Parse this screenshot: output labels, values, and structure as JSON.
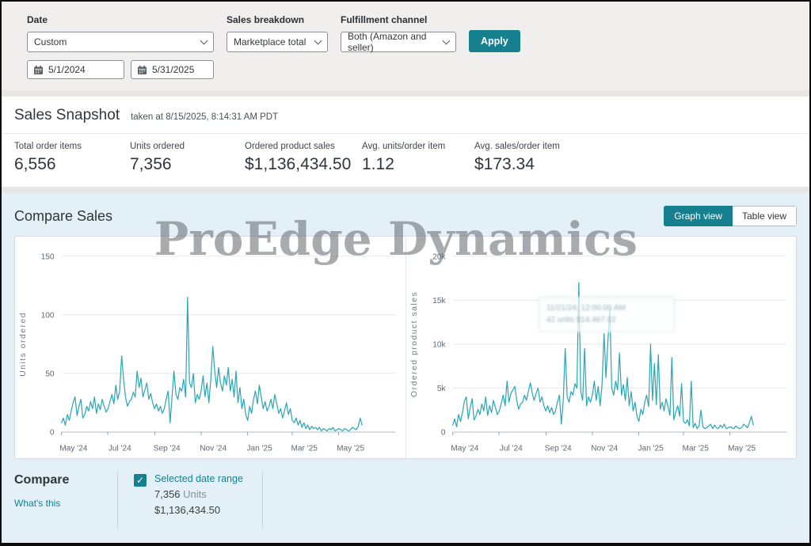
{
  "colors": {
    "accent": "#17808f",
    "chart_line": "#2ba6b6",
    "panel_bg": "#e3f0f8"
  },
  "filters": {
    "date": {
      "label": "Date",
      "value": "Custom",
      "start": "5/1/2024",
      "end": "5/31/2025"
    },
    "sales_breakdown": {
      "label": "Sales breakdown",
      "value": "Marketplace total"
    },
    "fulfillment_channel": {
      "label": "Fulfillment channel",
      "value": "Both (Amazon and seller)"
    },
    "apply_label": "Apply"
  },
  "snapshot": {
    "title": "Sales Snapshot",
    "taken_at": "taken at 8/15/2025, 8:14:31 AM PDT",
    "metrics": [
      {
        "label": "Total order items",
        "value": "6,556"
      },
      {
        "label": "Units ordered",
        "value": "7,356"
      },
      {
        "label": "Ordered product sales",
        "value": "$1,136,434.50"
      },
      {
        "label": "Avg. units/order item",
        "value": "1.12"
      },
      {
        "label": "Avg. sales/order item",
        "value": "$173.34"
      }
    ]
  },
  "compare_sales": {
    "title": "Compare Sales",
    "graph_view_label": "Graph view",
    "table_view_label": "Table view",
    "watermark": "ProEdge Dynamics"
  },
  "chart_data": [
    {
      "type": "line",
      "name": "units-ordered",
      "y_label": "Units ordered",
      "y_max": 150,
      "y_ticks": [
        {
          "value": 0,
          "label": "0"
        },
        {
          "value": 50,
          "label": "50"
        },
        {
          "value": 100,
          "label": "100"
        },
        {
          "value": 150,
          "label": "150"
        }
      ],
      "x_tick_labels": [
        "May '24",
        "Jul '24",
        "Sep '24",
        "Nov '24",
        "Jan '25",
        "Mar '25",
        "May '25"
      ],
      "x_range": [
        "5/1/2024",
        "5/31/2025"
      ],
      "values": [
        8,
        12,
        6,
        15,
        10,
        18,
        25,
        30,
        14,
        22,
        28,
        12,
        15,
        22,
        18,
        26,
        20,
        30,
        16,
        24,
        19,
        28,
        22,
        17,
        20,
        26,
        32,
        24,
        40,
        28,
        35,
        65,
        45,
        30,
        22,
        26,
        28,
        34,
        30,
        52,
        38,
        46,
        30,
        36,
        42,
        28,
        33,
        25,
        20,
        24,
        18,
        22,
        16,
        20,
        28,
        35,
        8,
        30,
        52,
        32,
        28,
        38,
        35,
        45,
        30,
        115,
        42,
        38,
        50,
        25,
        32,
        28,
        35,
        48,
        30,
        42,
        25,
        45,
        73,
        52,
        38,
        55,
        42,
        35,
        48,
        40,
        55,
        35,
        45,
        30,
        52,
        25,
        38,
        20,
        28,
        15,
        10,
        22,
        16,
        28,
        35,
        24,
        40,
        30,
        20,
        26,
        18,
        22,
        28,
        20,
        32,
        24,
        16,
        20,
        12,
        18,
        25,
        15,
        20,
        10,
        8,
        12,
        6,
        10,
        4,
        8,
        3,
        6,
        2,
        5,
        3,
        4,
        2,
        4,
        1,
        3,
        2,
        1,
        3,
        2,
        4,
        1,
        2,
        3,
        2,
        1,
        3,
        2,
        1,
        2,
        4,
        3,
        2,
        5,
        12,
        6
      ]
    },
    {
      "type": "line",
      "name": "ordered-product-sales",
      "y_label": "Ordered product sales",
      "y_max": 20000,
      "y_ticks": [
        {
          "value": 0,
          "label": "0"
        },
        {
          "value": 5000,
          "label": "5k"
        },
        {
          "value": 10000,
          "label": "10k"
        },
        {
          "value": 15000,
          "label": "15k"
        },
        {
          "value": 20000,
          "label": "20k"
        }
      ],
      "x_tick_labels": [
        "May '24",
        "Jul '24",
        "Sep '24",
        "Nov '24",
        "Jan '25",
        "Mar '25",
        "May '25"
      ],
      "x_range": [
        "5/1/2024",
        "5/31/2025"
      ],
      "tooltip": {
        "line1": "11/21/24, 12:00:00 AM",
        "line2": "42 units  $14,467.02"
      },
      "values": [
        800,
        1500,
        600,
        2000,
        1200,
        2200,
        3500,
        4000,
        1500,
        2800,
        3800,
        1400,
        1800,
        2600,
        2000,
        3200,
        2400,
        4000,
        1900,
        3000,
        2200,
        3600,
        2800,
        2000,
        2400,
        3200,
        4200,
        3000,
        5800,
        3400,
        4400,
        4800,
        5200,
        3600,
        2600,
        3200,
        3400,
        4200,
        3600,
        4600,
        5600,
        4400,
        3600,
        4400,
        5000,
        3400,
        4000,
        3000,
        2400,
        3000,
        2200,
        2800,
        2000,
        2400,
        3400,
        4200,
        900,
        3600,
        9500,
        4000,
        3400,
        4600,
        4200,
        5500,
        5000,
        17000,
        4600,
        3600,
        9500,
        3000,
        4000,
        3400,
        4200,
        5800,
        3600,
        5200,
        3000,
        5400,
        11200,
        6200,
        10300,
        14000,
        5000,
        4200,
        5800,
        4800,
        9000,
        4200,
        5400,
        3600,
        6200,
        3000,
        4600,
        2400,
        3400,
        1800,
        1200,
        2600,
        2000,
        3400,
        4200,
        2900,
        10000,
        3600,
        7800,
        3100,
        8800,
        2600,
        3400,
        2400,
        3800,
        2900,
        1900,
        8500,
        1400,
        2200,
        3000,
        1800,
        5500,
        1200,
        1000,
        1400,
        700,
        5800,
        500,
        1000,
        400,
        700,
        2500,
        600,
        400,
        500,
        700,
        900,
        400,
        800,
        500,
        400,
        800,
        500,
        900,
        400,
        500,
        600,
        500,
        400,
        700,
        500,
        400,
        500,
        900,
        700,
        500,
        1100,
        1800,
        800
      ]
    }
  ],
  "compare": {
    "title": "Compare",
    "whats_this": "What's this",
    "checkbox_checked": true,
    "selected_range_label": "Selected date range",
    "units_value": "7,356",
    "units_suffix": "Units",
    "sales_value": "$1,136,434.50"
  }
}
